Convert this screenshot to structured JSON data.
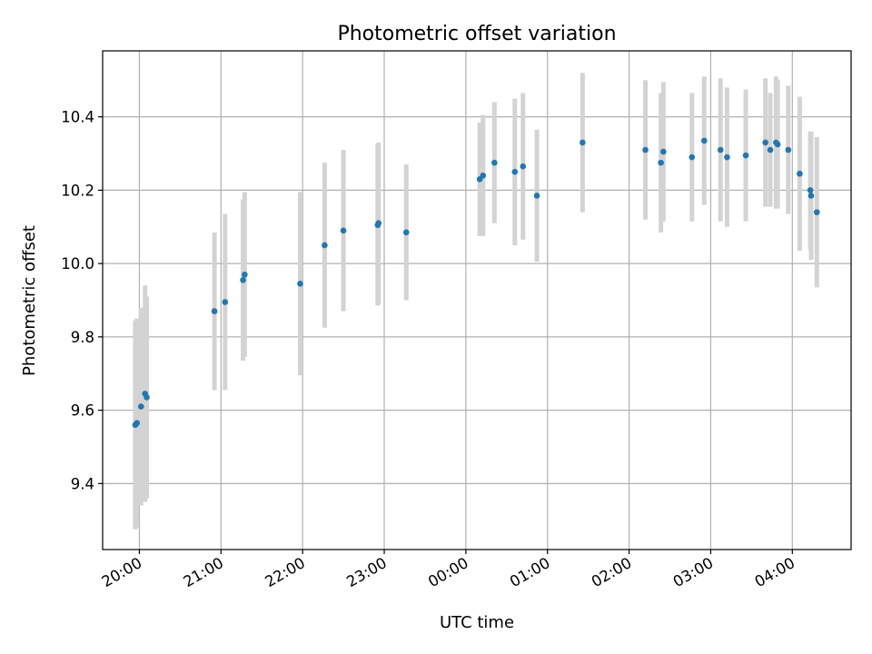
{
  "chart_data": {
    "type": "scatter",
    "title": "Photometric offset variation",
    "xlabel": "UTC time",
    "ylabel": "Photometric offset",
    "x_axis_type": "time (hours since 20:00 UTC)",
    "xlim": [
      -0.45,
      8.72
    ],
    "ylim": [
      9.22,
      10.58
    ],
    "xticks": [
      {
        "value": 0,
        "label": "20:00"
      },
      {
        "value": 1,
        "label": "21:00"
      },
      {
        "value": 2,
        "label": "22:00"
      },
      {
        "value": 3,
        "label": "23:00"
      },
      {
        "value": 4,
        "label": "00:00"
      },
      {
        "value": 5,
        "label": "01:00"
      },
      {
        "value": 6,
        "label": "02:00"
      },
      {
        "value": 7,
        "label": "03:00"
      },
      {
        "value": 8,
        "label": "04:00"
      }
    ],
    "yticks": [
      {
        "value": 9.4,
        "label": "9.4"
      },
      {
        "value": 9.6,
        "label": "9.6"
      },
      {
        "value": 9.8,
        "label": "9.8"
      },
      {
        "value": 10.0,
        "label": "10.0"
      },
      {
        "value": 10.2,
        "label": "10.2"
      },
      {
        "value": 10.4,
        "label": "10.4"
      }
    ],
    "grid": true,
    "point_color": "#1f77b4",
    "errorbar_color": "#d3d3d3",
    "points": [
      {
        "x": -0.05,
        "y": 9.56,
        "err": 0.285
      },
      {
        "x": -0.03,
        "y": 9.565,
        "err": 0.285
      },
      {
        "x": 0.02,
        "y": 9.61,
        "err": 0.27
      },
      {
        "x": 0.07,
        "y": 9.645,
        "err": 0.295
      },
      {
        "x": 0.09,
        "y": 9.635,
        "err": 0.275
      },
      {
        "x": 0.92,
        "y": 9.87,
        "err": 0.215
      },
      {
        "x": 1.05,
        "y": 9.895,
        "err": 0.24
      },
      {
        "x": 1.27,
        "y": 9.955,
        "err": 0.22
      },
      {
        "x": 1.29,
        "y": 9.97,
        "err": 0.225
      },
      {
        "x": 1.97,
        "y": 9.945,
        "err": 0.25
      },
      {
        "x": 2.27,
        "y": 10.05,
        "err": 0.225
      },
      {
        "x": 2.5,
        "y": 10.09,
        "err": 0.22
      },
      {
        "x": 2.92,
        "y": 10.105,
        "err": 0.22
      },
      {
        "x": 2.93,
        "y": 10.11,
        "err": 0.22
      },
      {
        "x": 3.27,
        "y": 10.085,
        "err": 0.185
      },
      {
        "x": 4.17,
        "y": 10.23,
        "err": 0.155
      },
      {
        "x": 4.21,
        "y": 10.24,
        "err": 0.165
      },
      {
        "x": 4.35,
        "y": 10.275,
        "err": 0.165
      },
      {
        "x": 4.6,
        "y": 10.25,
        "err": 0.2
      },
      {
        "x": 4.7,
        "y": 10.265,
        "err": 0.2
      },
      {
        "x": 4.87,
        "y": 10.185,
        "err": 0.18
      },
      {
        "x": 5.43,
        "y": 10.33,
        "err": 0.19
      },
      {
        "x": 6.2,
        "y": 10.31,
        "err": 0.19
      },
      {
        "x": 6.39,
        "y": 10.275,
        "err": 0.19
      },
      {
        "x": 6.42,
        "y": 10.305,
        "err": 0.19
      },
      {
        "x": 6.77,
        "y": 10.29,
        "err": 0.175
      },
      {
        "x": 6.92,
        "y": 10.335,
        "err": 0.175
      },
      {
        "x": 7.12,
        "y": 10.31,
        "err": 0.195
      },
      {
        "x": 7.2,
        "y": 10.29,
        "err": 0.19
      },
      {
        "x": 7.43,
        "y": 10.295,
        "err": 0.18
      },
      {
        "x": 7.67,
        "y": 10.33,
        "err": 0.175
      },
      {
        "x": 7.73,
        "y": 10.31,
        "err": 0.155
      },
      {
        "x": 7.8,
        "y": 10.33,
        "err": 0.18
      },
      {
        "x": 7.82,
        "y": 10.325,
        "err": 0.175
      },
      {
        "x": 7.95,
        "y": 10.31,
        "err": 0.175
      },
      {
        "x": 8.09,
        "y": 10.245,
        "err": 0.21
      },
      {
        "x": 8.22,
        "y": 10.2,
        "err": 0.16
      },
      {
        "x": 8.23,
        "y": 10.185,
        "err": 0.175
      },
      {
        "x": 8.3,
        "y": 10.14,
        "err": 0.205
      }
    ]
  }
}
